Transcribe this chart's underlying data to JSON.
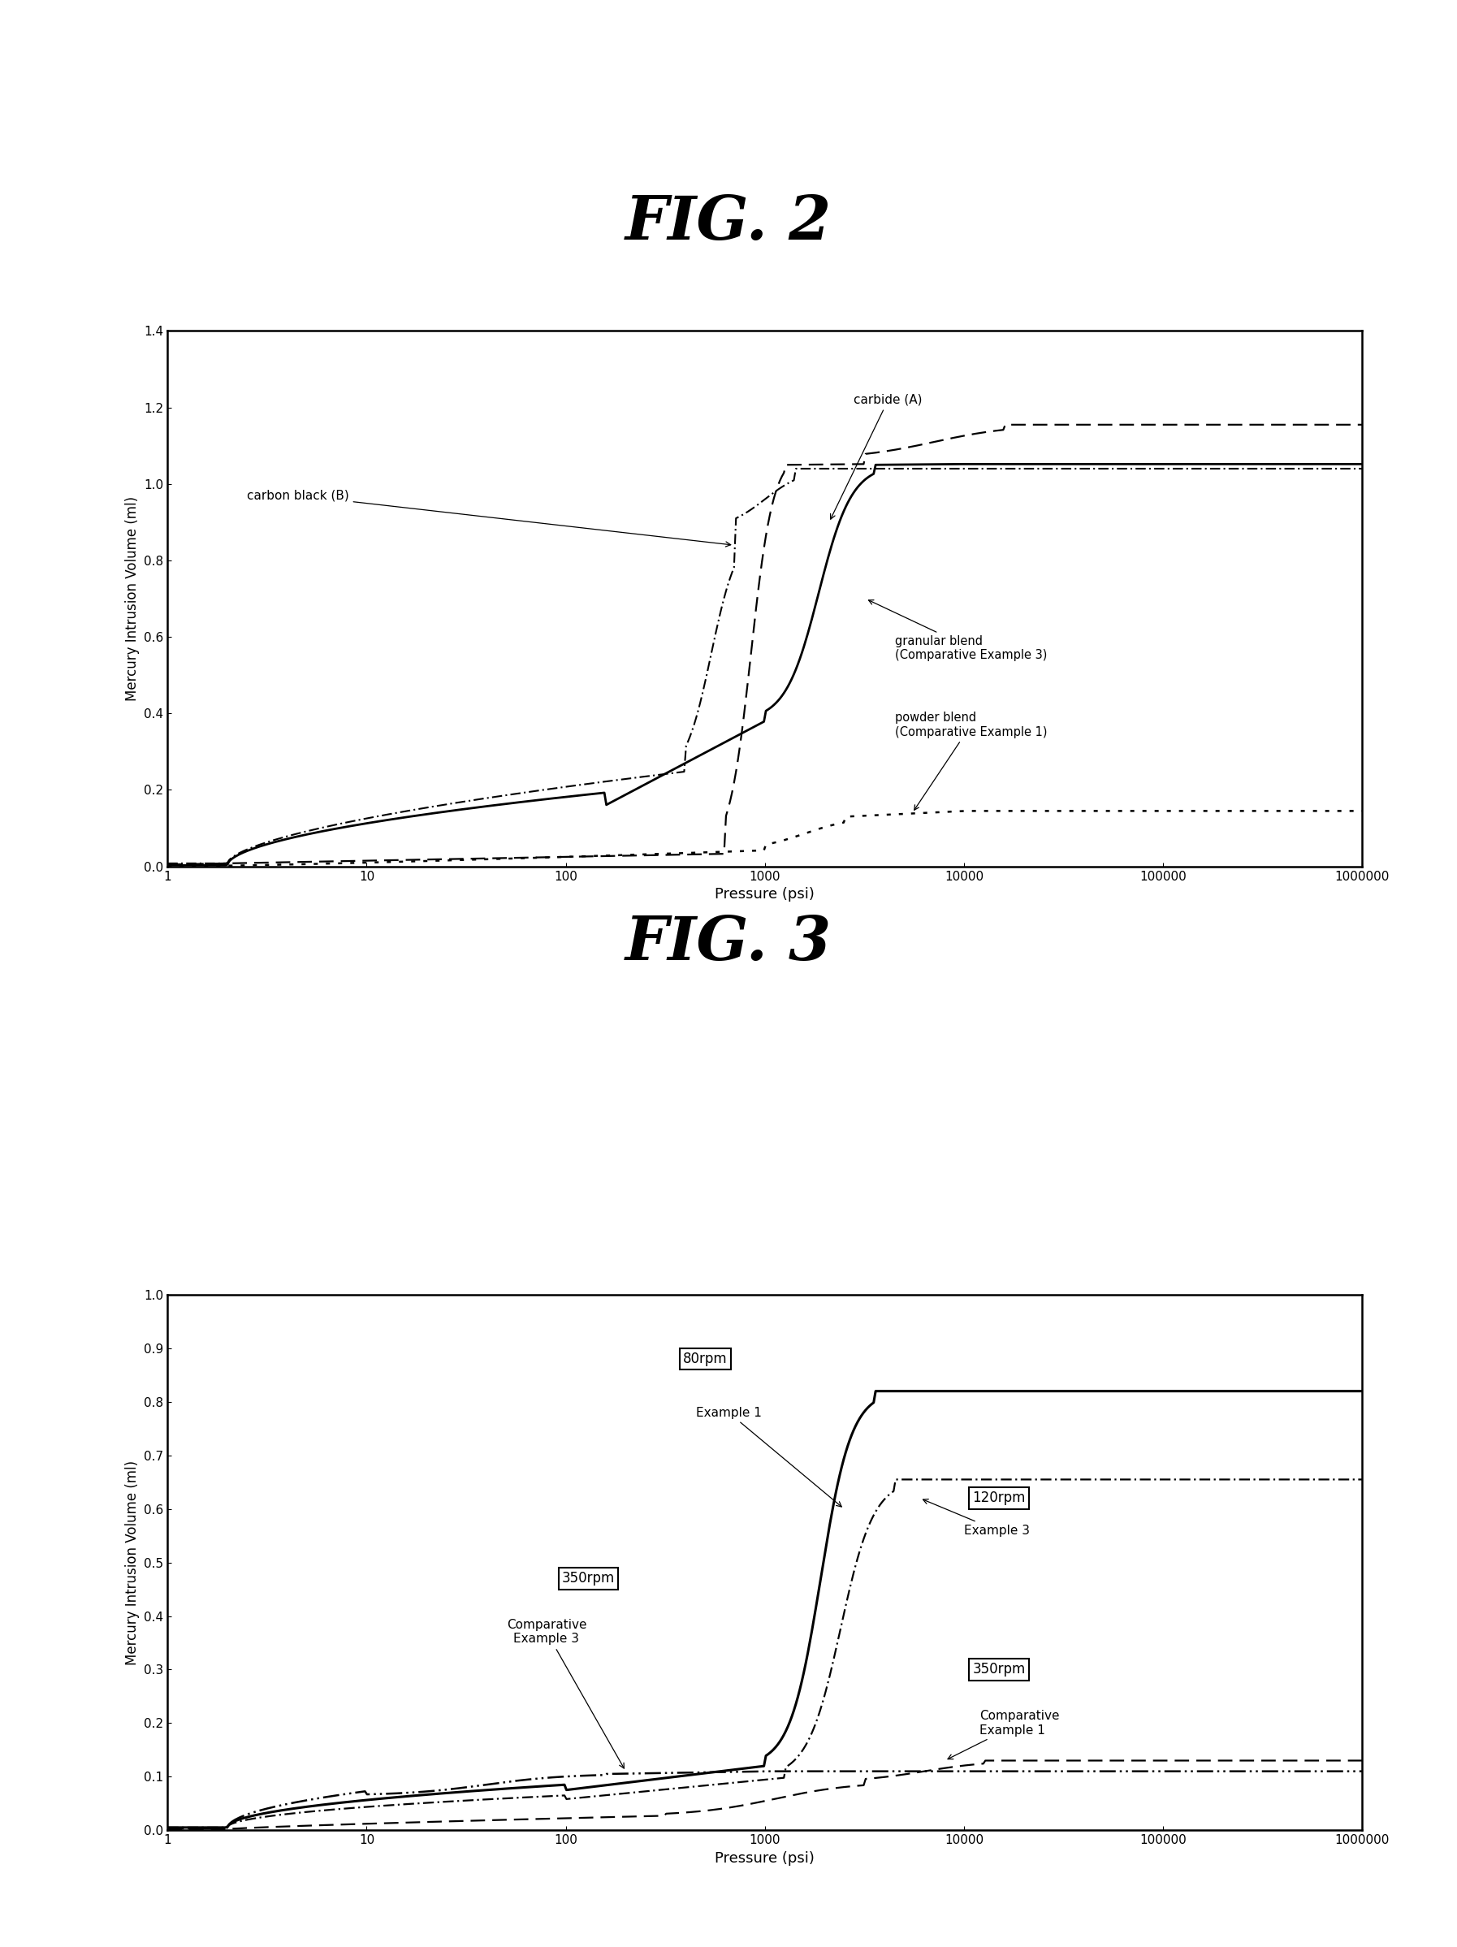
{
  "fig2_title": "FIG. 2",
  "fig3_title": "FIG. 3",
  "ylabel": "Mercury Intrusion Volume (ml)",
  "xlabel": "Pressure (psi)",
  "fig2_ylim": [
    0,
    1.4
  ],
  "fig2_yticks": [
    0,
    0.2,
    0.4,
    0.6,
    0.8,
    1.0,
    1.2,
    1.4
  ],
  "fig3_ylim": [
    0,
    1.0
  ],
  "fig3_yticks": [
    0,
    0.1,
    0.2,
    0.3,
    0.4,
    0.5,
    0.6,
    0.7,
    0.8,
    0.9,
    1.0
  ],
  "background_color": "#ffffff",
  "line_color": "#000000"
}
